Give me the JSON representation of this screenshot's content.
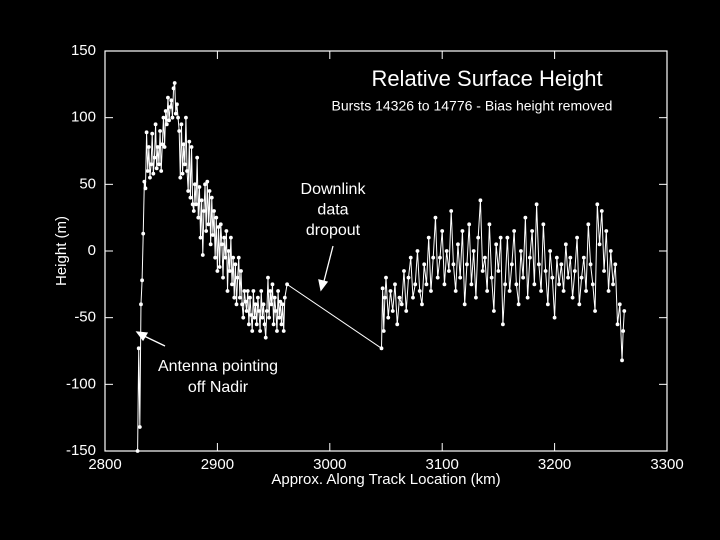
{
  "chart_data": {
    "type": "line",
    "title": "Relative Surface Height",
    "subtitle": "Bursts 14326 to 14776  - Bias height removed",
    "x_label": "Approx. Along Track Location (km)",
    "y_label": "Height (m)",
    "annotations": [
      {
        "lines": [
          "Downlink",
          "data",
          "dropout"
        ]
      },
      {
        "lines": [
          "Antenna pointing",
          "off Nadir"
        ]
      }
    ],
    "color": "#ffffff",
    "xlim": [
      2800,
      3300
    ],
    "ylim": [
      -150,
      150
    ],
    "xticks": [
      2800,
      2900,
      3000,
      3100,
      3200,
      3300
    ],
    "yticks": [
      -150,
      -100,
      -50,
      0,
      50,
      100,
      150
    ],
    "grid": false,
    "x": [
      2829,
      2830,
      2831,
      2832,
      2833,
      2834,
      2835,
      2836,
      2837,
      2838,
      2839,
      2840,
      2841,
      2842,
      2843,
      2844,
      2845,
      2846,
      2847,
      2848,
      2849,
      2850,
      2851,
      2852,
      2853,
      2854,
      2855,
      2856,
      2857,
      2858,
      2859,
      2860,
      2861,
      2862,
      2863,
      2864,
      2865,
      2866,
      2867,
      2868,
      2869,
      2870,
      2871,
      2872,
      2873,
      2874,
      2875,
      2876,
      2877,
      2878,
      2879,
      2880,
      2881,
      2882,
      2883,
      2884,
      2885,
      2886,
      2887,
      2888,
      2889,
      2890,
      2891,
      2892,
      2893,
      2894,
      2895,
      2896,
      2897,
      2898,
      2899,
      2900,
      2901,
      2902,
      2903,
      2904,
      2905,
      2906,
      2907,
      2908,
      2909,
      2910,
      2911,
      2912,
      2913,
      2914,
      2915,
      2916,
      2917,
      2918,
      2919,
      2920,
      2921,
      2922,
      2923,
      2924,
      2925,
      2926,
      2927,
      2928,
      2929,
      2930,
      2931,
      2932,
      2933,
      2934,
      2935,
      2936,
      2937,
      2938,
      2939,
      2940,
      2941,
      2942,
      2943,
      2944,
      2945,
      2946,
      2947,
      2948,
      2949,
      2950,
      2951,
      2952,
      2953,
      2954,
      2955,
      2956,
      2957,
      2958,
      2959,
      2960,
      2962,
      3046,
      3047,
      3048,
      3049,
      3050,
      3052,
      3054,
      3056,
      3058,
      3060,
      3062,
      3064,
      3066,
      3068,
      3070,
      3072,
      3074,
      3076,
      3078,
      3080,
      3082,
      3084,
      3086,
      3088,
      3090,
      3092,
      3094,
      3096,
      3098,
      3100,
      3102,
      3104,
      3106,
      3108,
      3110,
      3112,
      3114,
      3116,
      3118,
      3120,
      3122,
      3124,
      3126,
      3128,
      3130,
      3132,
      3134,
      3136,
      3138,
      3140,
      3142,
      3144,
      3146,
      3148,
      3150,
      3152,
      3154,
      3156,
      3158,
      3160,
      3162,
      3164,
      3166,
      3168,
      3170,
      3172,
      3174,
      3176,
      3178,
      3180,
      3182,
      3184,
      3186,
      3188,
      3190,
      3192,
      3194,
      3196,
      3198,
      3200,
      3202,
      3204,
      3206,
      3208,
      3210,
      3212,
      3214,
      3216,
      3218,
      3220,
      3222,
      3224,
      3226,
      3228,
      3230,
      3232,
      3234,
      3236,
      3238,
      3240,
      3242,
      3244,
      3246,
      3248,
      3250,
      3252,
      3254,
      3256,
      3258,
      3260,
      3261,
      3262
    ],
    "values": [
      -150,
      -73,
      -132,
      -40,
      -22,
      13,
      52,
      47,
      89,
      60,
      78,
      55,
      65,
      88,
      58,
      70,
      95,
      62,
      78,
      65,
      90,
      60,
      80,
      100,
      78,
      105,
      95,
      115,
      98,
      108,
      113,
      100,
      122,
      126,
      103,
      110,
      100,
      90,
      55,
      95,
      58,
      80,
      65,
      100,
      60,
      45,
      82,
      40,
      78,
      35,
      30,
      50,
      35,
      70,
      25,
      48,
      10,
      38,
      -3,
      30,
      50,
      15,
      52,
      20,
      45,
      5,
      40,
      12,
      30,
      -5,
      25,
      -15,
      18,
      -12,
      20,
      5,
      -20,
      10,
      -5,
      15,
      -30,
      0,
      -15,
      10,
      -25,
      -5,
      -35,
      -10,
      -40,
      -20,
      -5,
      -35,
      -15,
      -40,
      -50,
      -30,
      -38,
      -45,
      -30,
      -55,
      -35,
      -48,
      -60,
      -30,
      -50,
      -40,
      -55,
      -35,
      -45,
      -60,
      -30,
      -50,
      -40,
      -55,
      -65,
      -45,
      -20,
      -50,
      -30,
      -40,
      -25,
      -55,
      -35,
      -45,
      -60,
      -30,
      -50,
      -38,
      -55,
      -40,
      -60,
      -35,
      -25,
      -73,
      -28,
      -60,
      -35,
      -20,
      -50,
      -30,
      -45,
      -25,
      -55,
      -35,
      -40,
      -15,
      -45,
      -20,
      -5,
      -35,
      -25,
      0,
      -30,
      -40,
      -10,
      -25,
      10,
      -30,
      -5,
      25,
      -20,
      -5,
      15,
      -25,
      0,
      -15,
      30,
      -10,
      -30,
      5,
      -20,
      15,
      -40,
      -10,
      20,
      -25,
      0,
      -35,
      10,
      38,
      -15,
      -5,
      -30,
      20,
      -20,
      -45,
      5,
      -15,
      10,
      -55,
      -25,
      10,
      -30,
      -10,
      15,
      -25,
      -40,
      0,
      -20,
      25,
      -35,
      -5,
      15,
      -25,
      35,
      -10,
      -30,
      20,
      -15,
      -40,
      0,
      -20,
      -50,
      -5,
      -25,
      -10,
      -30,
      5,
      -20,
      -5,
      -35,
      -15,
      10,
      -40,
      -20,
      -5,
      -30,
      20,
      -10,
      -25,
      -45,
      35,
      5,
      30,
      -15,
      15,
      -30,
      0,
      -25,
      -10,
      -55,
      -40,
      -82,
      -60,
      -45
    ]
  }
}
